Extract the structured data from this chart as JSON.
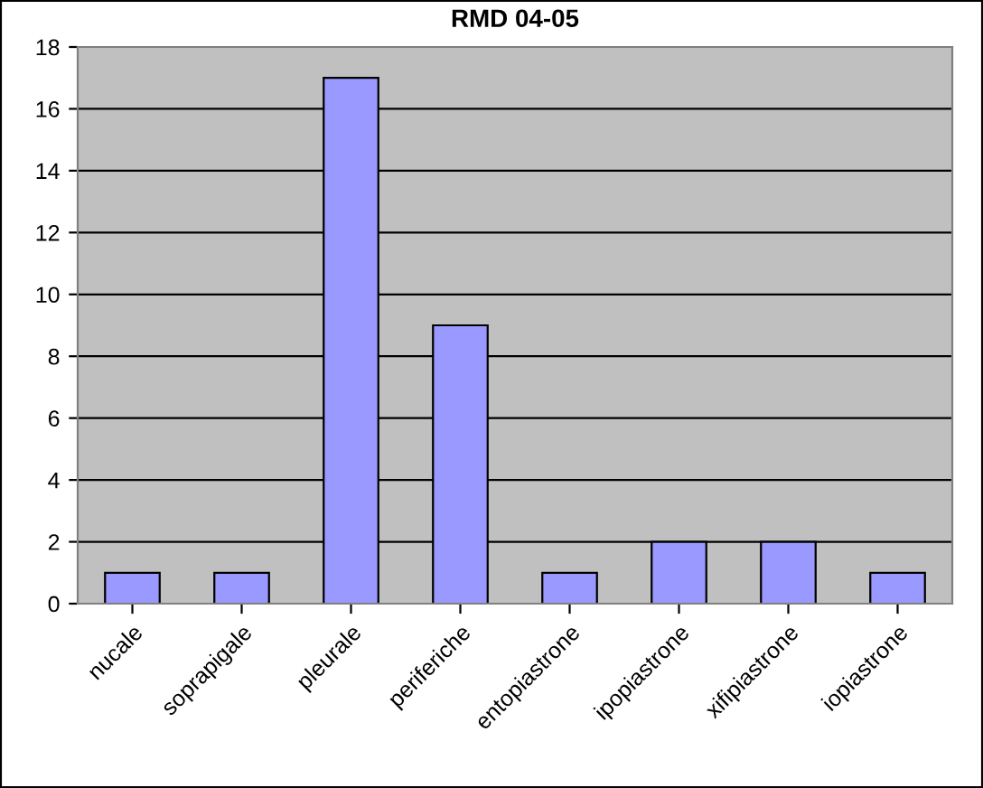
{
  "chart_data": {
    "type": "bar",
    "title": "RMD 04-05",
    "categories": [
      "nucale",
      "soprapigale",
      "pleurale",
      "periferiche",
      "entopiastrone",
      "ipopiastrone",
      "xifipiastrone",
      "iopiastrone"
    ],
    "values": [
      1,
      1,
      17,
      9,
      1,
      2,
      2,
      1
    ],
    "color": "#9999ff",
    "ylim": [
      0,
      18
    ],
    "yticks": [
      0,
      2,
      4,
      6,
      8,
      10,
      12,
      14,
      16,
      18
    ],
    "grid": "y",
    "legend": false
  }
}
